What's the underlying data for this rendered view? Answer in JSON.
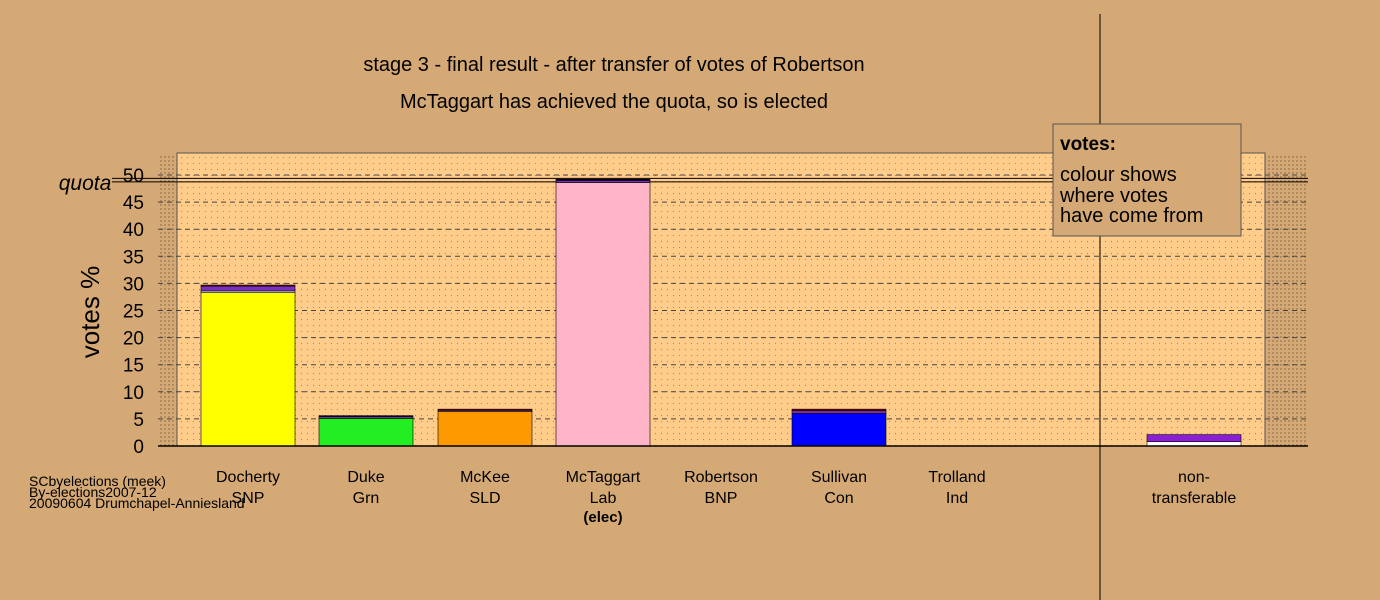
{
  "chart_data": {
    "type": "bar",
    "title": "stage 3 - final result - after transfer of votes of Robertson",
    "subtitle": "McTaggart has achieved the quota, so is elected",
    "ylabel": "votes %",
    "ylim": [
      0,
      50
    ],
    "yticks": [
      "0",
      "5",
      "10",
      "15",
      "20",
      "25",
      "30",
      "35",
      "40",
      "45",
      "50"
    ],
    "quota_label": "quota",
    "quota_value": 49.1,
    "grid": true,
    "legend": {
      "position": "top-right",
      "title": "votes:",
      "lines": [
        "colour shows",
        "where votes",
        "have come from"
      ]
    },
    "categories": [
      {
        "name": "Docherty",
        "party": "SNP",
        "elected": ""
      },
      {
        "name": "Duke",
        "party": "Grn",
        "elected": ""
      },
      {
        "name": "McKee",
        "party": "SLD",
        "elected": ""
      },
      {
        "name": "McTaggart",
        "party": "Lab",
        "elected": "(elec)"
      },
      {
        "name": "Robertson",
        "party": "BNP",
        "elected": ""
      },
      {
        "name": "Sullivan",
        "party": "Con",
        "elected": ""
      },
      {
        "name": "Trolland",
        "party": "Ind",
        "elected": ""
      },
      {
        "name": "non-",
        "party": "transferable",
        "elected": ""
      }
    ],
    "bars": [
      {
        "segments": [
          {
            "value": 28.3,
            "color": "#ffff00"
          },
          {
            "value": 0.3,
            "color": "#ffffff"
          },
          {
            "value": 0.9,
            "color": "#7b2fbe"
          },
          {
            "value": 0.2,
            "color": "#800000"
          }
        ]
      },
      {
        "segments": [
          {
            "value": 5.1,
            "color": "#22ee22"
          },
          {
            "value": 0.3,
            "color": "#7b2fbe"
          },
          {
            "value": 0.2,
            "color": "#000000"
          }
        ]
      },
      {
        "segments": [
          {
            "value": 6.4,
            "color": "#ff9900"
          },
          {
            "value": 0.2,
            "color": "#7b2fbe"
          },
          {
            "value": 0.2,
            "color": "#800000"
          }
        ]
      },
      {
        "segments": [
          {
            "value": 48.6,
            "color": "#ffb3c6"
          },
          {
            "value": 0.4,
            "color": "#7b2fbe"
          },
          {
            "value": 0.2,
            "color": "#000000"
          }
        ]
      },
      {
        "segments": []
      },
      {
        "segments": [
          {
            "value": 6.0,
            "color": "#0000ff"
          },
          {
            "value": 0.5,
            "color": "#7b2fbe"
          },
          {
            "value": 0.3,
            "color": "#800000"
          }
        ]
      },
      {
        "segments": []
      },
      {
        "segments": [
          {
            "value": 0.8,
            "color": "#ffffff"
          },
          {
            "value": 1.3,
            "color": "#8a1fd6"
          }
        ]
      }
    ],
    "colors": {
      "background": "#d5a975",
      "plot_background": "#ffcc8a"
    }
  },
  "footer": {
    "lines": [
      "SCbyelections (meek)",
      "By-elections2007-12",
      "20090604 Drumchapel-Anniesland"
    ]
  }
}
